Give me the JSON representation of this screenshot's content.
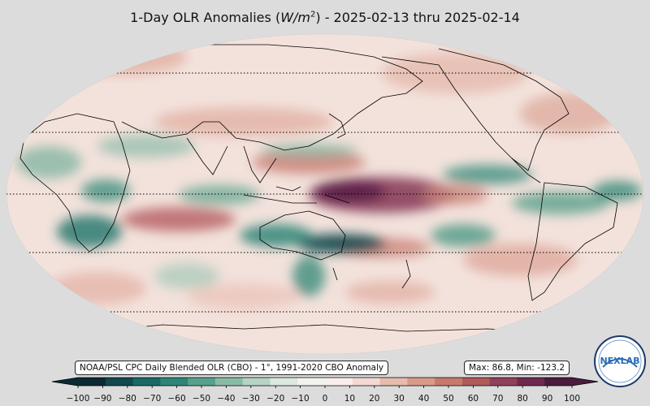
{
  "title": {
    "prefix": "1-Day OLR Anomalies (",
    "unit_var": "W/m",
    "unit_exp": "2",
    "suffix": ") - 2025-02-13 thru 2025-02-14"
  },
  "source_text": "NOAA/PSL CPC Daily Blended OLR (CBO) - 1°, 1991-2020 CBO Anomaly",
  "stats": {
    "max_label": "Max:",
    "max": "86.8,",
    "min_label": "Min:",
    "min": "-123.2"
  },
  "colorbar": {
    "range": [
      -100,
      100
    ],
    "ticks": [
      "−100",
      "−90",
      "−80",
      "−70",
      "−60",
      "−50",
      "−40",
      "−30",
      "−20",
      "−10",
      "0",
      "10",
      "20",
      "30",
      "40",
      "50",
      "60",
      "70",
      "80",
      "90",
      "100"
    ],
    "colors": [
      "#0c2a33",
      "#12484e",
      "#1a6866",
      "#2e8577",
      "#57a08c",
      "#88bba6",
      "#b6d3c5",
      "#dce8e0",
      "#f2f3ef",
      "#fbefec",
      "#f3d9d1",
      "#e7bbae",
      "#d99a8a",
      "#c77a6c",
      "#b05a5a",
      "#904058",
      "#6e2a4e",
      "#4a1b3c"
    ]
  },
  "logo": {
    "text": "NEXLAB"
  },
  "map": {
    "projection": "robinson",
    "center_longitude": 150,
    "parallels": [
      60,
      30,
      0,
      -30,
      -60
    ]
  }
}
